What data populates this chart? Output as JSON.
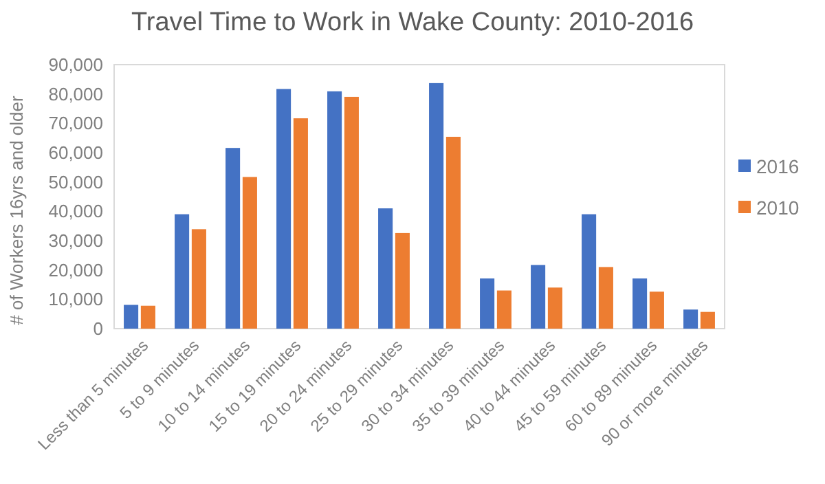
{
  "chart_data": {
    "type": "bar",
    "title": "Travel Time to Work in Wake County: 2010-2016",
    "ylabel": "# of Workers 16yrs and older",
    "categories": [
      "Less than 5 minutes",
      "5 to 9 minutes",
      "10 to 14 minutes",
      "15 to 19 minutes",
      "20 to 24 minutes",
      "25 to 29 minutes",
      "30 to 34 minutes",
      "35 to 39 minutes",
      "40 to 44 minutes",
      "45 to 59 minutes",
      "60 to 89 minutes",
      "90 or more minutes"
    ],
    "series": [
      {
        "name": "2016",
        "color": "#4472c4",
        "values": [
          8100,
          39000,
          61600,
          81700,
          80900,
          41000,
          83700,
          17100,
          21700,
          39000,
          17100,
          6500
        ]
      },
      {
        "name": "2010",
        "color": "#ed7d31",
        "values": [
          7800,
          33900,
          51700,
          71700,
          79000,
          32600,
          65400,
          13000,
          14000,
          21000,
          12600,
          5700
        ]
      }
    ],
    "ylim": [
      0,
      90000
    ],
    "yticks": [
      {
        "value": 0,
        "label": "0"
      },
      {
        "value": 10000,
        "label": "10,000"
      },
      {
        "value": 20000,
        "label": "20,000"
      },
      {
        "value": 30000,
        "label": "30,000"
      },
      {
        "value": 40000,
        "label": "40,000"
      },
      {
        "value": 50000,
        "label": "50,000"
      },
      {
        "value": 60000,
        "label": "60,000"
      },
      {
        "value": 70000,
        "label": "70,000"
      },
      {
        "value": 80000,
        "label": "80,000"
      },
      {
        "value": 90000,
        "label": "90,000"
      }
    ],
    "legend": "right"
  }
}
